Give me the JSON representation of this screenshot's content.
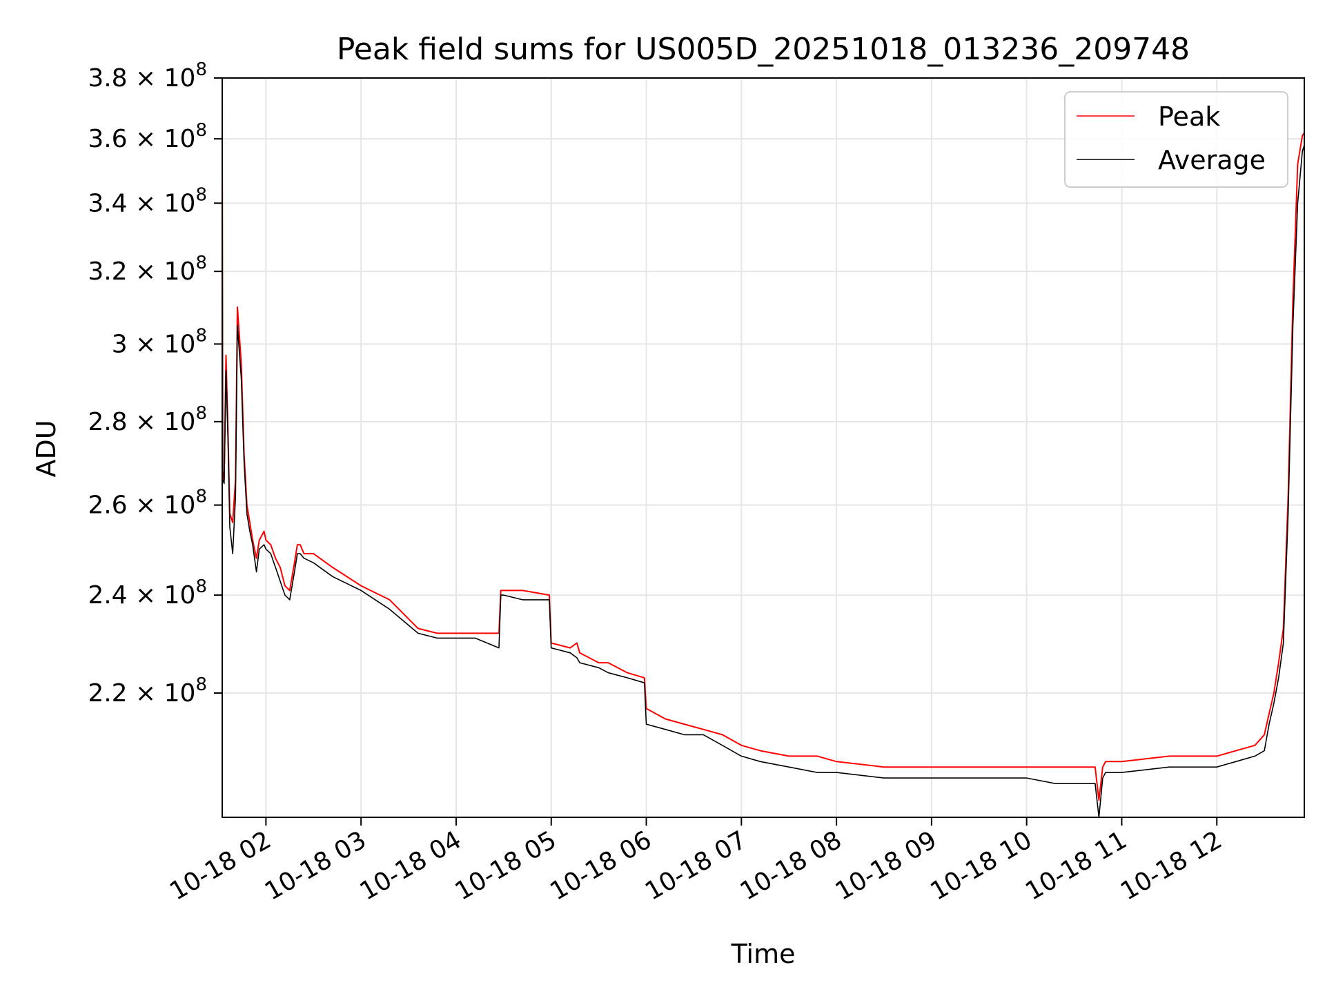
{
  "chart_data": {
    "type": "line",
    "title": "Peak field sums for US005D_20251018_013236_209748",
    "xlabel": "Time",
    "ylabel": "ADU",
    "yscale": "log",
    "xlim": [
      1.54,
      12.92
    ],
    "ylim": [
      197000000,
      380000000
    ],
    "grid": true,
    "legend_position": "top-right",
    "x_ticks": [
      {
        "value": 2,
        "label": "10-18 02"
      },
      {
        "value": 3,
        "label": "10-18 03"
      },
      {
        "value": 4,
        "label": "10-18 04"
      },
      {
        "value": 5,
        "label": "10-18 05"
      },
      {
        "value": 6,
        "label": "10-18 06"
      },
      {
        "value": 7,
        "label": "10-18 07"
      },
      {
        "value": 8,
        "label": "10-18 08"
      },
      {
        "value": 9,
        "label": "10-18 09"
      },
      {
        "value": 10,
        "label": "10-18 10"
      },
      {
        "value": 11,
        "label": "10-18 11"
      },
      {
        "value": 12,
        "label": "10-18 12"
      }
    ],
    "y_ticks": [
      {
        "value": 220000000,
        "mantissa": "2.2",
        "exp": "8"
      },
      {
        "value": 240000000,
        "mantissa": "2.4",
        "exp": "8"
      },
      {
        "value": 260000000,
        "mantissa": "2.6",
        "exp": "8"
      },
      {
        "value": 280000000,
        "mantissa": "2.8",
        "exp": "8"
      },
      {
        "value": 300000000,
        "mantissa": "3",
        "exp": "8"
      },
      {
        "value": 320000000,
        "mantissa": "3.2",
        "exp": "8"
      },
      {
        "value": 340000000,
        "mantissa": "3.4",
        "exp": "8"
      },
      {
        "value": 360000000,
        "mantissa": "3.6",
        "exp": "8"
      },
      {
        "value": 380000000,
        "mantissa": "3.8",
        "exp": "8"
      }
    ],
    "series": [
      {
        "name": "Peak",
        "color": "#ff0000",
        "x": [
          1.54,
          1.545,
          1.56,
          1.58,
          1.6,
          1.62,
          1.65,
          1.68,
          1.7,
          1.74,
          1.77,
          1.8,
          1.83,
          1.86,
          1.9,
          1.93,
          1.98,
          2.0,
          2.05,
          2.1,
          2.15,
          2.2,
          2.25,
          2.3,
          2.33,
          2.36,
          2.4,
          2.5,
          2.7,
          3.0,
          3.3,
          3.6,
          3.8,
          3.9,
          4.2,
          4.45,
          4.47,
          4.5,
          4.7,
          4.98,
          5.0,
          5.2,
          5.27,
          5.3,
          5.5,
          5.6,
          5.8,
          5.98,
          6.0,
          6.2,
          6.4,
          6.6,
          6.8,
          7.0,
          7.2,
          7.5,
          7.8,
          8.0,
          8.5,
          9.0,
          9.5,
          10.0,
          10.3,
          10.6,
          10.72,
          10.76,
          10.8,
          10.83,
          10.87,
          11.0,
          11.5,
          12.0,
          12.2,
          12.4,
          12.5,
          12.55,
          12.6,
          12.65,
          12.7,
          12.75,
          12.8,
          12.85,
          12.9,
          12.92
        ],
        "y": [
          380000000,
          268000000,
          266000000,
          297000000,
          278000000,
          258000000,
          256000000,
          266000000,
          310000000,
          295000000,
          272000000,
          260000000,
          256000000,
          252000000,
          248000000,
          252000000,
          254000000,
          252000000,
          251000000,
          248000000,
          246000000,
          242000000,
          241000000,
          247000000,
          251000000,
          251000000,
          249000000,
          249000000,
          246000000,
          242000000,
          239000000,
          233000000,
          232000000,
          232000000,
          232000000,
          232000000,
          241000000,
          241000000,
          241000000,
          240000000,
          230000000,
          229000000,
          230000000,
          228000000,
          226000000,
          226000000,
          224000000,
          223000000,
          217000000,
          215000000,
          214000000,
          213000000,
          212000000,
          210000000,
          209000000,
          208000000,
          208000000,
          207000000,
          206000000,
          206000000,
          206000000,
          206000000,
          206000000,
          206000000,
          206000000,
          200000000,
          206000000,
          207000000,
          207000000,
          207000000,
          208000000,
          208000000,
          209000000,
          210000000,
          212000000,
          216000000,
          220000000,
          226000000,
          233000000,
          262000000,
          312000000,
          352000000,
          361000000,
          362000000
        ]
      },
      {
        "name": "Average",
        "color": "#000000",
        "x": [
          1.54,
          1.545,
          1.56,
          1.58,
          1.6,
          1.62,
          1.65,
          1.68,
          1.7,
          1.74,
          1.77,
          1.8,
          1.83,
          1.86,
          1.9,
          1.93,
          1.98,
          2.0,
          2.05,
          2.1,
          2.15,
          2.2,
          2.25,
          2.3,
          2.33,
          2.36,
          2.4,
          2.5,
          2.7,
          3.0,
          3.3,
          3.6,
          3.8,
          3.9,
          4.2,
          4.45,
          4.47,
          4.5,
          4.7,
          4.98,
          5.0,
          5.2,
          5.27,
          5.3,
          5.5,
          5.6,
          5.8,
          5.98,
          6.0,
          6.2,
          6.4,
          6.6,
          6.8,
          7.0,
          7.2,
          7.5,
          7.8,
          8.0,
          8.5,
          9.0,
          9.5,
          10.0,
          10.3,
          10.6,
          10.72,
          10.76,
          10.8,
          10.83,
          10.87,
          11.0,
          11.5,
          12.0,
          12.2,
          12.4,
          12.5,
          12.55,
          12.6,
          12.65,
          12.7,
          12.75,
          12.8,
          12.85,
          12.9,
          12.92
        ],
        "y": [
          370000000,
          266000000,
          265000000,
          293000000,
          276000000,
          255000000,
          249000000,
          262000000,
          305000000,
          291000000,
          270000000,
          258000000,
          254000000,
          251000000,
          245000000,
          250000000,
          251000000,
          250000000,
          249000000,
          246000000,
          243000000,
          240000000,
          239000000,
          245000000,
          249000000,
          249000000,
          248000000,
          247000000,
          244000000,
          241000000,
          237000000,
          232000000,
          231000000,
          231000000,
          231000000,
          229000000,
          240000000,
          240000000,
          239000000,
          239000000,
          229000000,
          228000000,
          227000000,
          226000000,
          225000000,
          224000000,
          223000000,
          222000000,
          214000000,
          213000000,
          212000000,
          212000000,
          210000000,
          208000000,
          207000000,
          206000000,
          205000000,
          205000000,
          204000000,
          204000000,
          204000000,
          204000000,
          203000000,
          203000000,
          203000000,
          197000000,
          204000000,
          205000000,
          205000000,
          205000000,
          206000000,
          206000000,
          207000000,
          208000000,
          209000000,
          214000000,
          218000000,
          223000000,
          230000000,
          258000000,
          305000000,
          340000000,
          356000000,
          358000000
        ]
      }
    ]
  }
}
